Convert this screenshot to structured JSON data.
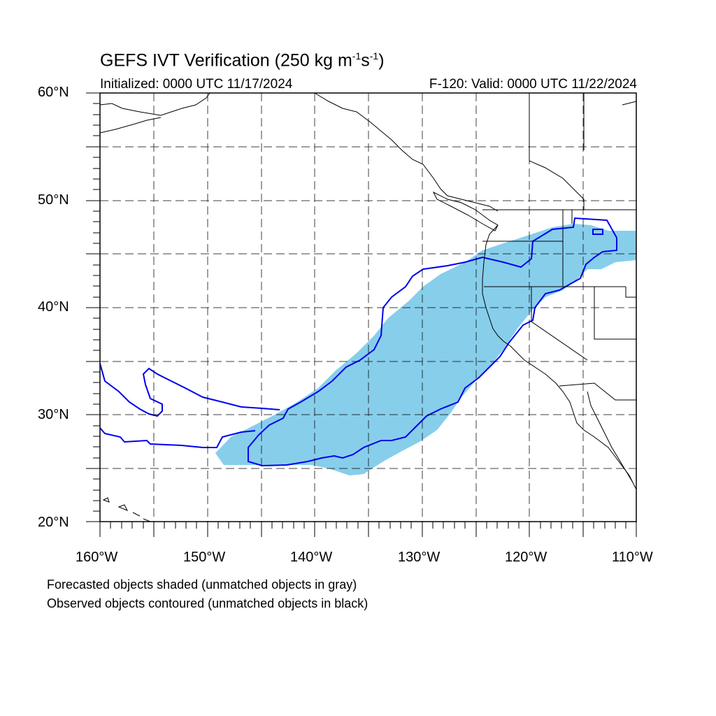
{
  "title": {
    "main": "GEFS IVT Verification (250 kg m",
    "exp1": "-1",
    "mid": "s",
    "exp2": "-1",
    "end": ")"
  },
  "initialized": "Initialized: 0000 UTC 11/17/2024",
  "valid": "F-120: Valid: 0000 UTC 11/22/2024",
  "lat_labels": [
    "60°N",
    "50°N",
    "40°N",
    "30°N",
    "20°N"
  ],
  "lon_labels": [
    "160°W",
    "150°W",
    "140°W",
    "130°W",
    "120°W",
    "110°W"
  ],
  "footnotes": {
    "forecast": "Forecasted objects shaded (unmatched objects in gray)",
    "observed": "Observed objects contoured (unmatched objects in black)"
  },
  "colors": {
    "forecast_fill": "#87ceeb",
    "observed_contour": "#0000ee",
    "coast": "#000000",
    "grid": "#000000"
  },
  "map_extent": {
    "lon_min": -160,
    "lon_max": -110,
    "lat_min": 20,
    "lat_max": 60
  }
}
